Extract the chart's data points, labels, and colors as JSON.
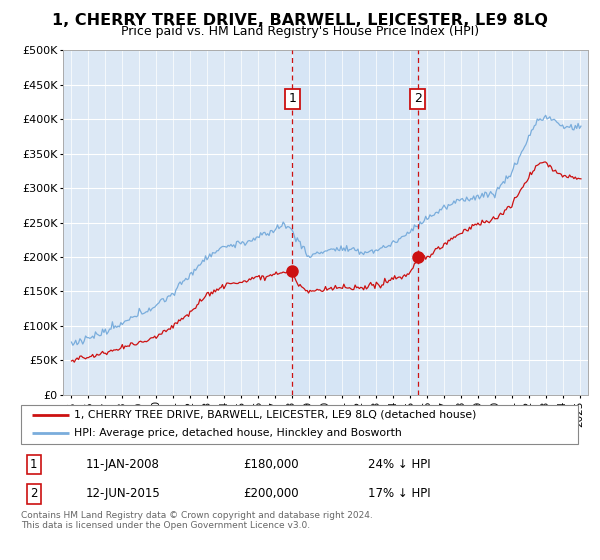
{
  "title": "1, CHERRY TREE DRIVE, BARWELL, LEICESTER, LE9 8LQ",
  "subtitle": "Price paid vs. HM Land Registry's House Price Index (HPI)",
  "ylabel_ticks": [
    "£0",
    "£50K",
    "£100K",
    "£150K",
    "£200K",
    "£250K",
    "£300K",
    "£350K",
    "£400K",
    "£450K",
    "£500K"
  ],
  "ytick_values": [
    0,
    50000,
    100000,
    150000,
    200000,
    250000,
    300000,
    350000,
    400000,
    450000,
    500000
  ],
  "hpi_color": "#7aaddc",
  "price_color": "#cc1111",
  "vline_color": "#cc1111",
  "annotation_box_color": "#cc1111",
  "sale1_date": 2008.04,
  "sale1_price": 180000,
  "sale1_label": "1",
  "sale2_date": 2015.45,
  "sale2_price": 200000,
  "sale2_label": "2",
  "legend_line1": "1, CHERRY TREE DRIVE, BARWELL, LEICESTER, LE9 8LQ (detached house)",
  "legend_line2": "HPI: Average price, detached house, Hinckley and Bosworth",
  "table_row1": [
    "1",
    "11-JAN-2008",
    "£180,000",
    "24% ↓ HPI"
  ],
  "table_row2": [
    "2",
    "12-JUN-2015",
    "£200,000",
    "17% ↓ HPI"
  ],
  "footer": "Contains HM Land Registry data © Crown copyright and database right 2024.\nThis data is licensed under the Open Government Licence v3.0.",
  "xmin": 1994.5,
  "xmax": 2025.5,
  "ymin": 0,
  "ymax": 500000,
  "bg_color": "#dce8f5"
}
